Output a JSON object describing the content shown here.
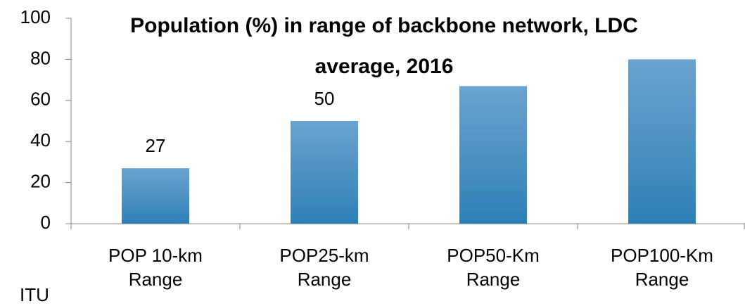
{
  "chart_data": {
    "type": "bar",
    "title": "Population (%) in range of backbone network, LDC average, 2016",
    "categories": [
      "POP 10-km Range",
      "POP25-km Range",
      "POP50-Km Range",
      "POP100-Km Range"
    ],
    "values": [
      27,
      50,
      67,
      80
    ],
    "value_labels": [
      "27",
      "50",
      null,
      null
    ],
    "color": "#2f80b8",
    "ylim": [
      0,
      100
    ],
    "yticks": [
      0,
      20,
      40,
      60,
      80,
      100
    ],
    "grid": false,
    "source": "ITU"
  }
}
